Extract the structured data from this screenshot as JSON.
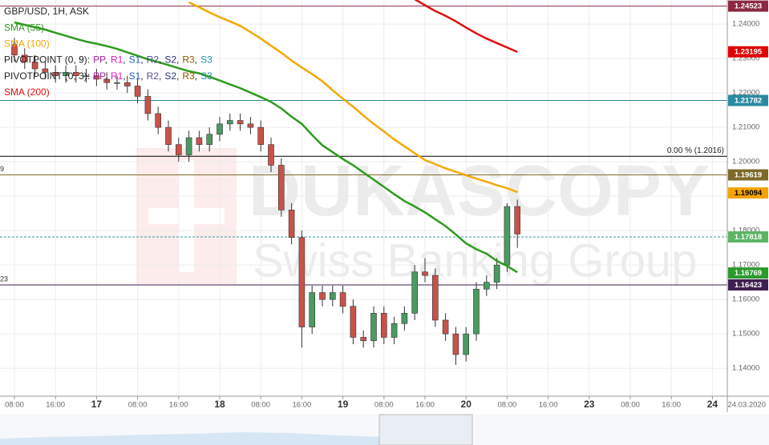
{
  "chart_data": {
    "type": "candlestick",
    "title": "GBP/USD, 1H, ASK",
    "categories": [
      "08:00",
      null,
      null,
      null,
      "16:00",
      null,
      null,
      null,
      "17",
      null,
      null,
      null,
      "08:00",
      null,
      null,
      null,
      "16:00",
      null,
      null,
      null,
      "18",
      null,
      null,
      null,
      "08:00",
      null,
      null,
      null,
      "16:00",
      null,
      null,
      null,
      "19",
      null,
      null,
      null,
      "08:00",
      null,
      null,
      null,
      "16:00",
      null,
      null,
      null,
      "20",
      null,
      null,
      null,
      "08:00",
      null,
      null,
      null,
      "16:00",
      null,
      null,
      null,
      "23",
      null,
      null,
      null,
      "08:00",
      null,
      null,
      null,
      "16:00",
      null,
      null,
      null,
      "24"
    ],
    "open": [
      1.234,
      1.231,
      1.229,
      1.227,
      1.226,
      1.225,
      1.226,
      1.225,
      1.225,
      1.224,
      1.223,
      1.223,
      1.222,
      1.219,
      1.214,
      1.21,
      1.205,
      1.202,
      1.207,
      1.205,
      1.208,
      1.211,
      1.212,
      1.211,
      1.21,
      1.205,
      1.199,
      1.186,
      1.178,
      1.152,
      1.162,
      1.16,
      1.162,
      1.158,
      1.149,
      1.148,
      1.156,
      1.149,
      1.153,
      1.156,
      1.168,
      1.167,
      1.154,
      1.15,
      1.144,
      1.15,
      1.163,
      1.165,
      1.17,
      1.187,
      null,
      null,
      null,
      null,
      null,
      null,
      null,
      null,
      null,
      null,
      null,
      null,
      null,
      null,
      null,
      null,
      null,
      null,
      null
    ],
    "high": [
      1.236,
      1.233,
      1.231,
      1.229,
      1.228,
      1.228,
      1.228,
      1.227,
      1.227,
      1.226,
      1.225,
      1.225,
      1.224,
      1.221,
      1.216,
      1.212,
      1.207,
      1.209,
      1.209,
      1.21,
      1.213,
      1.214,
      1.214,
      1.213,
      1.212,
      1.207,
      1.201,
      1.188,
      1.18,
      1.164,
      1.164,
      1.164,
      1.164,
      1.16,
      1.151,
      1.158,
      1.158,
      1.155,
      1.158,
      1.17,
      1.172,
      1.169,
      1.156,
      1.152,
      1.152,
      1.165,
      1.167,
      1.172,
      1.188,
      1.189,
      null,
      null,
      null,
      null,
      null,
      null,
      null,
      null,
      null,
      null,
      null,
      null,
      null,
      null,
      null,
      null,
      null,
      null,
      null
    ],
    "low": [
      1.229,
      1.227,
      1.225,
      1.224,
      1.223,
      1.223,
      1.223,
      1.223,
      1.222,
      1.221,
      1.221,
      1.22,
      1.217,
      1.212,
      1.208,
      1.203,
      1.2,
      1.2,
      1.203,
      1.203,
      1.206,
      1.209,
      1.209,
      1.208,
      1.203,
      1.197,
      1.184,
      1.176,
      1.146,
      1.15,
      1.158,
      1.158,
      1.156,
      1.147,
      1.146,
      1.146,
      1.147,
      1.147,
      1.151,
      1.154,
      1.165,
      1.152,
      1.148,
      1.141,
      1.142,
      1.148,
      1.161,
      1.163,
      1.168,
      1.175,
      null,
      null,
      null,
      null,
      null,
      null,
      null,
      null,
      null,
      null,
      null,
      null,
      null,
      null,
      null,
      null,
      null,
      null,
      null
    ],
    "close": [
      1.231,
      1.229,
      1.227,
      1.226,
      1.225,
      1.226,
      1.225,
      1.225,
      1.224,
      1.223,
      1.223,
      1.222,
      1.219,
      1.214,
      1.21,
      1.205,
      1.202,
      1.207,
      1.205,
      1.208,
      1.211,
      1.212,
      1.211,
      1.21,
      1.205,
      1.199,
      1.186,
      1.178,
      1.152,
      1.162,
      1.16,
      1.162,
      1.158,
      1.149,
      1.148,
      1.156,
      1.149,
      1.153,
      1.156,
      1.168,
      1.167,
      1.154,
      1.15,
      1.144,
      1.15,
      1.163,
      1.165,
      1.17,
      1.187,
      1.179,
      null,
      null,
      null,
      null,
      null,
      null,
      null,
      null,
      null,
      null,
      null,
      null,
      null,
      null,
      null,
      null,
      null,
      null,
      null
    ],
    "series": [
      {
        "name": "SMA (55)",
        "color": "#2e9a1e",
        "values": [
          1.2405,
          1.2398,
          1.2391,
          1.2384,
          1.2375,
          1.2366,
          1.2357,
          1.2349,
          1.2343,
          1.2336,
          1.2328,
          1.2318,
          1.2308,
          1.2298,
          1.229,
          1.2281,
          1.2272,
          1.2263,
          1.2257,
          1.2247,
          1.2236,
          1.2225,
          1.2214,
          1.2201,
          1.2188,
          1.2174,
          1.2155,
          1.2131,
          1.211,
          1.2078,
          1.2048,
          1.2028,
          1.2008,
          1.199,
          1.1969,
          1.1948,
          1.1927,
          1.1906,
          1.1886,
          1.187,
          1.1853,
          1.1833,
          1.1813,
          1.1789,
          1.1763,
          1.1746,
          1.1733,
          1.1712,
          1.1697,
          1.1679,
          null,
          null,
          null,
          null,
          null,
          null,
          null,
          null,
          null,
          null,
          null,
          null,
          null,
          null,
          null,
          null,
          null,
          null,
          null
        ]
      },
      {
        "name": "SMA (100)",
        "color": "#f5a800",
        "values": [
          null,
          null,
          null,
          null,
          null,
          null,
          null,
          null,
          null,
          null,
          null,
          null,
          null,
          null,
          null,
          null,
          null,
          1.2463,
          1.2449,
          1.2434,
          1.242,
          1.2408,
          1.2395,
          1.2377,
          1.2358,
          1.2337,
          1.2317,
          1.2294,
          1.2274,
          1.2255,
          1.2234,
          1.2208,
          1.2183,
          1.216,
          1.2134,
          1.211,
          1.2088,
          1.2065,
          1.2045,
          1.2025,
          1.2005,
          1.1993,
          1.1981,
          1.1971,
          1.1961,
          1.1951,
          1.1942,
          1.1932,
          1.1923,
          1.1912,
          null,
          null,
          null,
          null,
          null,
          null,
          null,
          null,
          null,
          null,
          null,
          null,
          null,
          null,
          null,
          null,
          null,
          null,
          null
        ]
      },
      {
        "name": "SMA (200)",
        "color": "#e01010",
        "values": [
          null,
          null,
          null,
          null,
          null,
          null,
          null,
          null,
          null,
          null,
          null,
          null,
          null,
          null,
          null,
          null,
          null,
          null,
          null,
          null,
          null,
          null,
          null,
          null,
          null,
          null,
          null,
          null,
          null,
          null,
          null,
          null,
          null,
          null,
          null,
          null,
          null,
          null,
          null,
          1.2472,
          1.2455,
          1.2438,
          1.2424,
          1.2408,
          1.239,
          1.2373,
          1.2358,
          1.2345,
          1.2332,
          1.2319,
          null,
          null,
          null,
          null,
          null,
          null,
          null,
          null,
          null,
          null,
          null,
          null,
          null,
          null,
          null,
          null,
          null,
          null,
          null
        ]
      }
    ],
    "indicators": [
      {
        "name": "PIVOTPOINT (0, 9):",
        "separator": ",",
        "parts": [
          {
            "text": "PP",
            "color": "#a020a0"
          },
          {
            "text": "R1",
            "color": "#e020c0"
          },
          {
            "text": "S1",
            "color": "#2060c0"
          },
          {
            "text": "R2",
            "color": "#5050a0"
          },
          {
            "text": "S2",
            "color": "#303080"
          },
          {
            "text": "R3",
            "color": "#8b5a00"
          },
          {
            "text": "S3",
            "color": "#2090a0"
          }
        ]
      },
      {
        "name": "PIVOTPOINT (0, 3):",
        "separator": ",",
        "parts": [
          {
            "text": "PP",
            "color": "#a020a0"
          },
          {
            "text": "R1",
            "color": "#e020c0"
          },
          {
            "text": "S1",
            "color": "#2060c0"
          },
          {
            "text": "R2",
            "color": "#5050a0"
          },
          {
            "text": "S2",
            "color": "#303080"
          },
          {
            "text": "R3",
            "color": "#8b5a00"
          },
          {
            "text": "S3",
            "color": "#2090a0"
          }
        ]
      }
    ],
    "levels": [
      {
        "value": 1.24523,
        "color": "#8b2942",
        "line": "solid",
        "box": true
      },
      {
        "value": 1.23195,
        "color": "#e00000",
        "box": true
      },
      {
        "value": 1.21782,
        "color": "#2a8aa0",
        "line": "solid",
        "box": true
      },
      {
        "value": 1.2016,
        "color": "#000000",
        "line": "solid",
        "annotation": "0.00 % (1.2016)"
      },
      {
        "value": 1.19619,
        "color": "#7d6a2a",
        "line": "solid",
        "box": true,
        "left_text": "9"
      },
      {
        "value": 1.19094,
        "color": "#f5a300",
        "box": true,
        "text_color": "#000000"
      },
      {
        "value": 1.17818,
        "color": "#5bb565",
        "line": "dashed",
        "line_color": "#3a9aa0",
        "box": true
      },
      {
        "value": 1.16769,
        "color": "#2e9a2e",
        "box": true
      },
      {
        "value": 1.16423,
        "color": "#3f1f4f",
        "line": "solid",
        "box": true,
        "left_text": "23"
      }
    ],
    "ylim": [
      1.1319,
      1.247
    ],
    "yticks": [
      {
        "value": 1.14,
        "label": "1.14000"
      },
      {
        "value": 1.15,
        "label": "1.15000"
      },
      {
        "value": 1.16,
        "label": "1.16000"
      },
      {
        "value": 1.17,
        "label": "1.17000"
      },
      {
        "value": 1.18,
        "label": "1.18000"
      },
      {
        "value": 1.19,
        "label": "1.19000"
      },
      {
        "value": 1.2,
        "label": "1.20000"
      },
      {
        "value": 1.21,
        "label": "1.21000"
      },
      {
        "value": 1.22,
        "label": "1.22000"
      },
      {
        "value": 1.23,
        "label": "1.23000"
      },
      {
        "value": 1.24,
        "label": "1.24000"
      }
    ],
    "date_label": "24.03.2020",
    "watermark": {
      "brand": "DUKASCOPY",
      "tagline": "Swiss Banking Group"
    },
    "up_color": "#4a9a62",
    "down_color": "#c8524a",
    "grid": true
  }
}
